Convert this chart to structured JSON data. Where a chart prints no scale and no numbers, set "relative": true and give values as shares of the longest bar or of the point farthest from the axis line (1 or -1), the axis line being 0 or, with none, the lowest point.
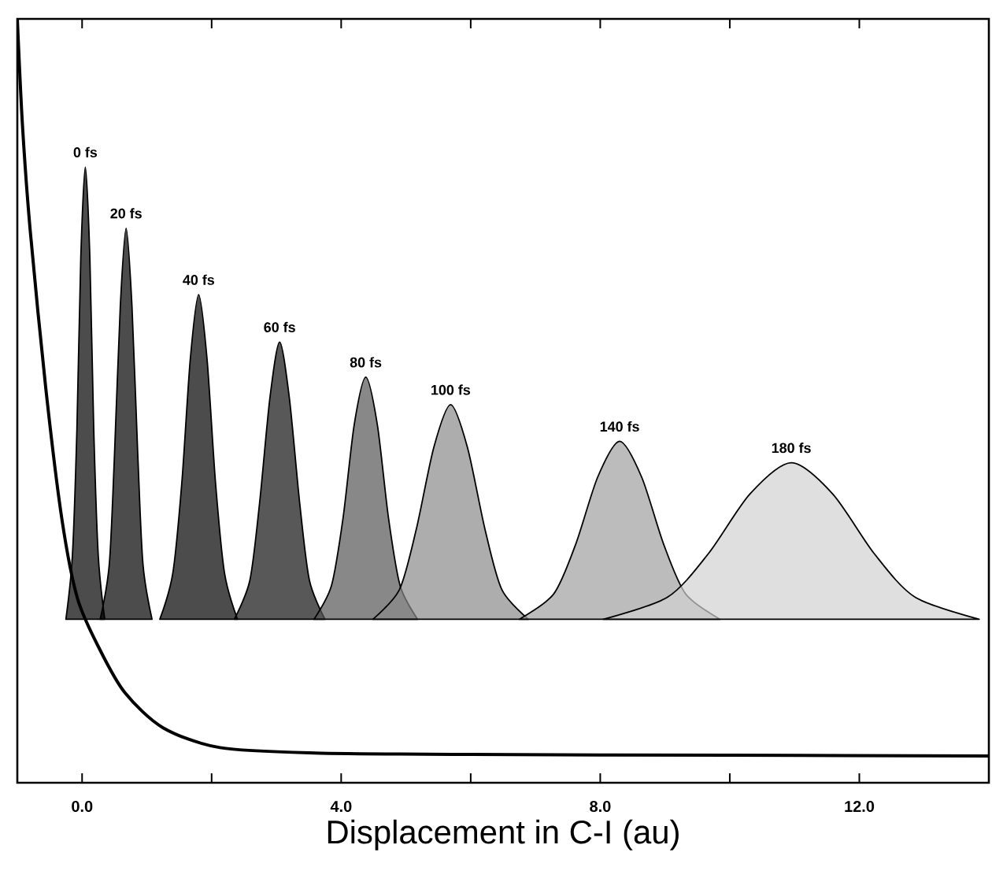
{
  "chart_data": {
    "type": "area",
    "relative": true,
    "xlabel": "Displacement in C-I (au)",
    "tick_labels": "x",
    "xlim": [
      -1,
      14
    ],
    "xticks": [
      {
        "value": 0,
        "label": "0.0"
      },
      {
        "value": 2,
        "label": null
      },
      {
        "value": 4,
        "label": "4.0"
      },
      {
        "value": 6,
        "label": null
      },
      {
        "value": 8,
        "label": "8.0"
      },
      {
        "value": 10,
        "label": null
      },
      {
        "value": 12,
        "label": "12.0"
      }
    ],
    "series": [
      {
        "type": "line",
        "color": "#000000",
        "x": [
          -1,
          -0.92,
          -0.8,
          -0.56,
          -0.31,
          -0.07,
          0.27,
          0.66,
          1.25,
          2.13,
          3.59,
          6,
          10,
          14
        ],
        "values": [
          1.0,
          0.86,
          0.722,
          0.516,
          0.344,
          0.241,
          0.175,
          0.118,
          0.072,
          0.046,
          0.039,
          0.037,
          0.036,
          0.035
        ]
      },
      {
        "name": "0 fs",
        "color": "#000000",
        "x": [
          -0.25,
          -0.15,
          -0.08,
          -0.02,
          0.05,
          0.12,
          0.18,
          0.25,
          0.35
        ],
        "values": [
          0.214,
          0.297,
          0.463,
          0.688,
          0.806,
          0.688,
          0.463,
          0.297,
          0.214
        ]
      },
      {
        "name": "20 fs",
        "color": "#000000",
        "x": [
          0.28,
          0.42,
          0.5,
          0.59,
          0.68,
          0.77,
          0.86,
          0.94,
          1.08
        ],
        "values": [
          0.214,
          0.286,
          0.429,
          0.624,
          0.726,
          0.624,
          0.429,
          0.286,
          0.214
        ]
      },
      {
        "name": "40 fs",
        "color": "#000000",
        "x": [
          1.2,
          1.4,
          1.54,
          1.67,
          1.8,
          1.93,
          2.06,
          2.2,
          2.4
        ],
        "values": [
          0.214,
          0.274,
          0.393,
          0.554,
          0.639,
          0.554,
          0.393,
          0.274,
          0.214
        ]
      },
      {
        "name": "60 fs",
        "color": "#111111",
        "x": [
          2.35,
          2.59,
          2.74,
          2.9,
          3.05,
          3.2,
          3.36,
          3.51,
          3.75
        ],
        "values": [
          0.214,
          0.265,
          0.366,
          0.504,
          0.577,
          0.504,
          0.366,
          0.265,
          0.214
        ]
      },
      {
        "name": "80 fs",
        "color": "#555555",
        "x": [
          3.58,
          3.85,
          4.03,
          4.2,
          4.38,
          4.56,
          4.73,
          4.91,
          5.18
        ],
        "values": [
          0.214,
          0.258,
          0.347,
          0.468,
          0.531,
          0.468,
          0.347,
          0.258,
          0.214
        ]
      },
      {
        "name": "100 fs",
        "color": "#8a8a8a",
        "x": [
          4.49,
          4.9,
          5.16,
          5.43,
          5.69,
          5.95,
          6.22,
          6.48,
          6.89
        ],
        "values": [
          0.214,
          0.253,
          0.332,
          0.439,
          0.495,
          0.439,
          0.332,
          0.253,
          0.214
        ]
      },
      {
        "name": "140 fs",
        "color": "#a0a0a0",
        "x": [
          6.75,
          7.28,
          7.62,
          7.96,
          8.3,
          8.64,
          8.98,
          9.32,
          9.85
        ],
        "values": [
          0.214,
          0.247,
          0.312,
          0.4,
          0.447,
          0.4,
          0.312,
          0.247,
          0.214
        ]
      },
      {
        "name": "180 fs",
        "color": "#d2d2d2",
        "x": [
          8.05,
          9.04,
          9.67,
          10.31,
          10.95,
          11.59,
          12.23,
          12.86,
          13.85
        ],
        "values": [
          0.214,
          0.243,
          0.3,
          0.378,
          0.419,
          0.378,
          0.3,
          0.243,
          0.214
        ]
      }
    ]
  }
}
